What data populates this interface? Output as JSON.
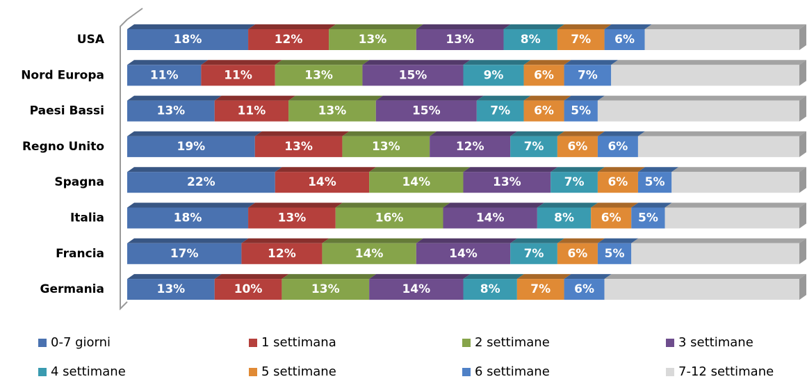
{
  "chart_data": {
    "type": "stacked_bar_horizontal",
    "categories": [
      "USA",
      "Nord Europa",
      "Paesi Bassi",
      "Regno Unito",
      "Spagna",
      "Italia",
      "Francia",
      "Germania"
    ],
    "xlim": [
      0,
      100
    ],
    "series": [
      {
        "name": "0-7 giorni",
        "color": "#4a72b0",
        "values": [
          18,
          11,
          13,
          19,
          22,
          18,
          17,
          13
        ],
        "value_labels": [
          "18%",
          "11%",
          "13%",
          "19%",
          "22%",
          "18%",
          "17%",
          "13%"
        ]
      },
      {
        "name": "1 settimana",
        "color": "#b5403c",
        "values": [
          12,
          11,
          11,
          13,
          14,
          13,
          12,
          10
        ],
        "value_labels": [
          "12%",
          "11%",
          "11%",
          "13%",
          "14%",
          "13%",
          "12%",
          "10%"
        ]
      },
      {
        "name": "2 settimane",
        "color": "#86a44a",
        "values": [
          13,
          13,
          13,
          13,
          14,
          16,
          14,
          13
        ],
        "value_labels": [
          "13%",
          "13%",
          "13%",
          "13%",
          "14%",
          "16%",
          "14%",
          "13%"
        ]
      },
      {
        "name": "3 settimane",
        "color": "#6e4d8d",
        "values": [
          13,
          15,
          15,
          12,
          13,
          14,
          14,
          14
        ],
        "value_labels": [
          "13%",
          "15%",
          "15%",
          "12%",
          "13%",
          "14%",
          "14%",
          "14%"
        ]
      },
      {
        "name": "4 settimane",
        "color": "#3a9bb0",
        "values": [
          8,
          9,
          7,
          7,
          7,
          8,
          7,
          8
        ],
        "value_labels": [
          "8%",
          "9%",
          "7%",
          "7%",
          "7%",
          "8%",
          "7%",
          "8%"
        ]
      },
      {
        "name": "5 settimane",
        "color": "#e08a35",
        "values": [
          7,
          6,
          6,
          6,
          6,
          6,
          6,
          7
        ],
        "value_labels": [
          "7%",
          "6%",
          "6%",
          "6%",
          "6%",
          "6%",
          "6%",
          "7%"
        ]
      },
      {
        "name": "6 settimane",
        "color": "#4f81c7",
        "values": [
          6,
          7,
          5,
          6,
          5,
          5,
          5,
          6
        ],
        "value_labels": [
          "6%",
          "7%",
          "5%",
          "6%",
          "5%",
          "5%",
          "5%",
          "6%"
        ]
      },
      {
        "name": "7-12 settimane",
        "color": "#d9d9d9",
        "values": [
          23,
          28,
          30,
          24,
          19,
          20,
          25,
          29
        ]
      }
    ]
  }
}
